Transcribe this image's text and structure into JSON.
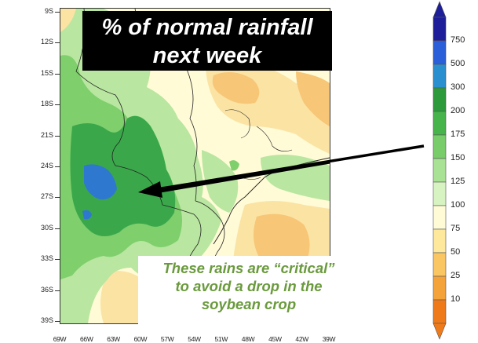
{
  "title": {
    "line1": "% of normal rainfall",
    "line2": "next week"
  },
  "annotation": {
    "line1": "These rains are “critical”",
    "line2": "to avoid a drop in the",
    "line3": "soybean crop"
  },
  "latitude_labels": [
    "9S",
    "12S",
    "15S",
    "18S",
    "21S",
    "24S",
    "27S",
    "30S",
    "33S",
    "36S",
    "39S"
  ],
  "longitude_labels": [
    "69W",
    "66W",
    "63W",
    "60W",
    "57W",
    "54W",
    "51W",
    "48W",
    "45W",
    "42W",
    "39W"
  ],
  "colorbar": {
    "levels": [
      "750",
      "500",
      "300",
      "200",
      "175",
      "150",
      "125",
      "100",
      "75",
      "50",
      "25",
      "10"
    ],
    "colors": [
      "#1e1e9a",
      "#2a5fd9",
      "#2a8fcf",
      "#2c9a3a",
      "#47b34b",
      "#78cc6a",
      "#a9e295",
      "#d6f3c1",
      "#fffbd6",
      "#fde89b",
      "#f9c663",
      "#f4a23a",
      "#ef7a1a"
    ]
  },
  "map_colors": {
    "background": "#fffbd6",
    "green_light": "#b9e6a0",
    "green_medium": "#7fcf6c",
    "green_dark": "#3aa84a",
    "blue": "#2f78d0",
    "orange_light": "#fbe3a4",
    "orange_medium": "#f7c676",
    "arrow": "#000000"
  }
}
